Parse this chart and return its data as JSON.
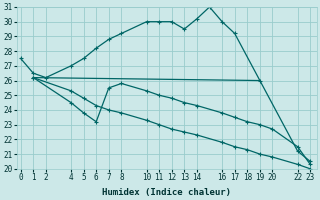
{
  "xlabel": "Humidex (Indice chaleur)",
  "bg_color": "#cce8e8",
  "grid_color": "#99cccc",
  "line_color": "#006666",
  "ylim": [
    20,
    31
  ],
  "yticks": [
    20,
    21,
    22,
    23,
    24,
    25,
    26,
    27,
    28,
    29,
    30,
    31
  ],
  "xticks": [
    0,
    1,
    2,
    4,
    5,
    6,
    7,
    8,
    10,
    11,
    12,
    13,
    14,
    16,
    17,
    18,
    19,
    20,
    22,
    23
  ],
  "xlim": [
    -0.3,
    23.5
  ],
  "line1_x": [
    0,
    1,
    2,
    4,
    5,
    6,
    7,
    8,
    10,
    11,
    12,
    13,
    14,
    15,
    16,
    17,
    19,
    22,
    23
  ],
  "line1_y": [
    27.5,
    26.5,
    26.2,
    27.0,
    27.5,
    28.2,
    28.8,
    29.2,
    30.0,
    30.0,
    30.0,
    29.5,
    30.2,
    31.0,
    30.0,
    29.2,
    26.0,
    21.2,
    20.5
  ],
  "line2_x": [
    1,
    19
  ],
  "line2_y": [
    26.2,
    26.0
  ],
  "line3_x": [
    1,
    4,
    5,
    6,
    7,
    8,
    10,
    11,
    12,
    13,
    14,
    16,
    17,
    18,
    19,
    20,
    22,
    23
  ],
  "line3_y": [
    26.2,
    24.5,
    23.8,
    23.2,
    25.5,
    25.8,
    25.3,
    25.0,
    24.8,
    24.5,
    24.3,
    23.8,
    23.5,
    23.2,
    23.0,
    22.7,
    21.5,
    20.3
  ],
  "line4_x": [
    1,
    4,
    5,
    6,
    7,
    8,
    10,
    11,
    12,
    13,
    14,
    16,
    17,
    18,
    19,
    20,
    22,
    23
  ],
  "line4_y": [
    26.2,
    25.3,
    24.8,
    24.3,
    24.0,
    23.8,
    23.3,
    23.0,
    22.7,
    22.5,
    22.3,
    21.8,
    21.5,
    21.3,
    21.0,
    20.8,
    20.3,
    20.0
  ]
}
